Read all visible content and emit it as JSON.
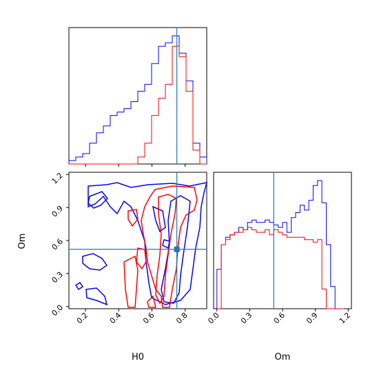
{
  "chart_data": {
    "type": "corner",
    "parameters": [
      "H0",
      "Om"
    ],
    "truth": {
      "H0": 0.75,
      "Om": 0.52
    },
    "truth_color": "#1f77b4",
    "series": [
      {
        "color": "#0000ff"
      },
      {
        "color": "#ff0000"
      }
    ],
    "panels": [
      {
        "id": "hist-H0",
        "type": "step-histogram",
        "xlim": [
          0.1,
          0.93
        ],
        "yticks_shown": false,
        "x_ticks": [
          0.2,
          0.4,
          0.6,
          0.8
        ],
        "bins": {
          "start": 0.1,
          "width": 0.0415,
          "count": 20
        },
        "series_counts": [
          [
            1,
            2,
            3,
            6,
            9,
            11,
            14,
            15,
            16,
            18,
            21,
            23,
            29,
            34,
            35,
            37,
            32,
            24,
            6,
            2
          ],
          [
            0,
            0,
            0,
            0,
            0,
            0,
            0,
            0,
            0,
            0,
            2,
            6,
            14,
            19,
            23,
            34,
            31,
            21,
            4,
            0
          ]
        ]
      },
      {
        "id": "contour-H0-Om",
        "type": "contour",
        "xlabel": "H0",
        "ylabel": "Om",
        "xlim": [
          0.1,
          0.93
        ],
        "ylim": [
          -0.02,
          1.22
        ],
        "x_ticks": [
          "0.2",
          "0.4",
          "0.6",
          "0.8"
        ],
        "y_ticks": [
          "0.0",
          "0.3",
          "0.6",
          "0.9",
          "1.2"
        ]
      },
      {
        "id": "hist-Om",
        "type": "step-histogram",
        "xlabel": "Om",
        "xlim": [
          -0.03,
          1.23
        ],
        "yticks_shown": false,
        "x_ticks": [
          "0.0",
          "0.3",
          "0.6",
          "0.9",
          "1.2"
        ],
        "bins": {
          "start": 0.0,
          "width": 0.04,
          "count": 29
        },
        "series_counts": [
          [
            16,
            26,
            29,
            30,
            31,
            33,
            32,
            35,
            36,
            35,
            35,
            36,
            35,
            34,
            33,
            35,
            31,
            37,
            39,
            42,
            40,
            44,
            50,
            52,
            43,
            26,
            9,
            0,
            0
          ],
          [
            0,
            26,
            28,
            30,
            31,
            31,
            32,
            33,
            32,
            31,
            31,
            32,
            30,
            32,
            31,
            30,
            29,
            29,
            29,
            29,
            28,
            28,
            27,
            28,
            8,
            0,
            0,
            0,
            0
          ]
        ]
      }
    ]
  }
}
